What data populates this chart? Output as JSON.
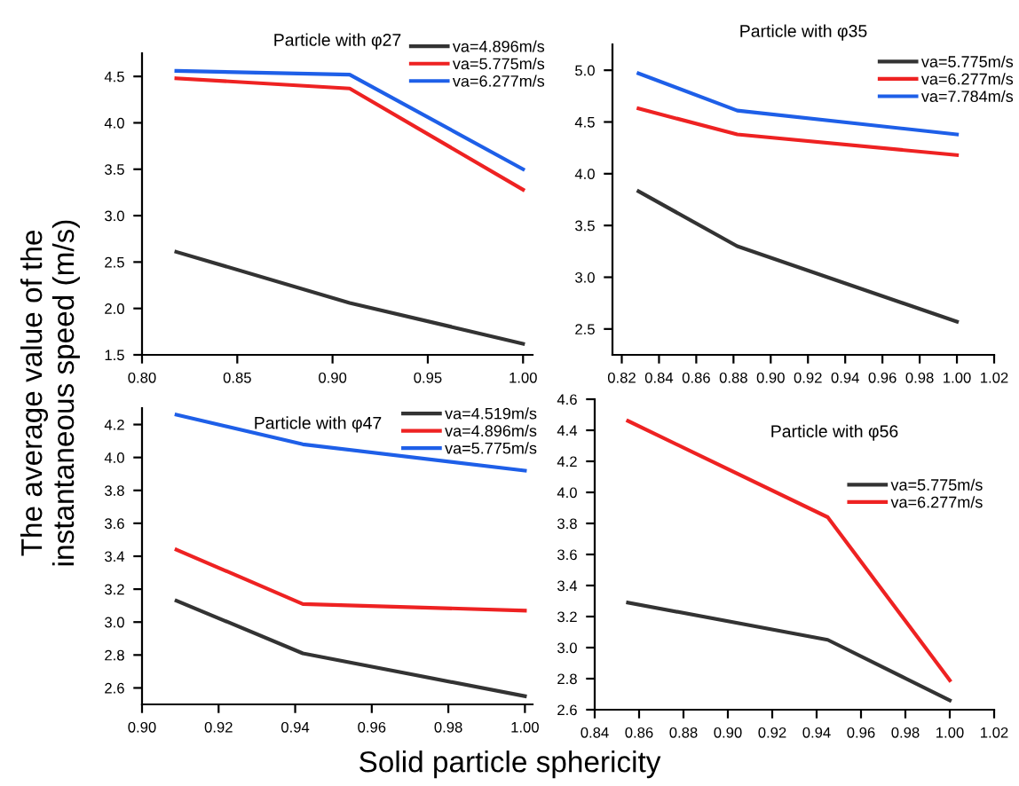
{
  "chart_data": [
    {
      "type": "line",
      "title": "Particle with φ27",
      "xlabel": "Solid particle sphericity",
      "ylabel": "The average value of the\ninstantaneous speed (m/s)",
      "x": [
        0.818,
        0.909,
        1.0
      ],
      "xlim": [
        0.8,
        1.005
      ],
      "xticks": [
        {
          "value": 0.8,
          "label": "0.80"
        },
        0.85,
        {
          "value": 0.9,
          "label": "0.90"
        },
        0.95,
        {
          "value": 1.0,
          "label": "1.00"
        }
      ],
      "ylim": [
        1.5,
        4.75
      ],
      "yticks": [
        1.5,
        {
          "value": 2.0,
          "label": "2.0"
        },
        2.5,
        {
          "value": 3.0,
          "label": "3.0"
        },
        3.5,
        {
          "value": 4.0,
          "label": "4.0"
        },
        4.5
      ],
      "legend": "top right",
      "grid": false,
      "series": [
        {
          "name": "va=4.896m/s",
          "color": "#333333",
          "values": [
            2.61,
            2.06,
            1.62
          ]
        },
        {
          "name": "va=5.775m/s",
          "color": "#ee2222",
          "values": [
            4.48,
            4.37,
            3.28
          ]
        },
        {
          "name": "va=6.277m/s",
          "color": "#1e5fe8",
          "values": [
            4.56,
            4.52,
            3.5
          ]
        }
      ]
    },
    {
      "type": "line",
      "title": "Particle with φ35",
      "x": [
        0.829,
        0.882,
        1.0
      ],
      "xlim": [
        0.815,
        1.02
      ],
      "xticks": [
        0.82,
        0.84,
        0.86,
        0.88,
        {
          "value": 0.9,
          "label": "0.90"
        },
        0.92,
        0.94,
        0.96,
        0.98,
        {
          "value": 1.0,
          "label": "1.00"
        },
        1.02
      ],
      "ylim": [
        2.25,
        5.25
      ],
      "yticks": [
        2.5,
        {
          "value": 3.0,
          "label": "3.0"
        },
        3.5,
        {
          "value": 4.0,
          "label": "4.0"
        },
        4.5,
        {
          "value": 5.0,
          "label": "5.0"
        }
      ],
      "legend": "top right",
      "grid": false,
      "series": [
        {
          "name": "va=5.775m/s",
          "color": "#333333",
          "values": [
            3.83,
            3.3,
            2.57
          ]
        },
        {
          "name": "va=6.277m/s",
          "color": "#ee2222",
          "values": [
            4.63,
            4.38,
            4.18
          ]
        },
        {
          "name": "va=7.784m/s",
          "color": "#1e5fe8",
          "values": [
            4.97,
            4.61,
            4.38
          ]
        }
      ]
    },
    {
      "type": "line",
      "title": "Particle with φ47",
      "x": [
        0.909,
        0.942,
        1.0
      ],
      "xlim": [
        0.9,
        1.002
      ],
      "xticks": [
        {
          "value": 0.9,
          "label": "0.90"
        },
        0.92,
        0.94,
        0.96,
        0.98,
        {
          "value": 1.0,
          "label": "1.00"
        }
      ],
      "ylim": [
        2.5,
        4.3
      ],
      "yticks": [
        2.6,
        2.8,
        {
          "value": 3.0,
          "label": "3.0"
        },
        3.2,
        3.4,
        3.6,
        3.8,
        {
          "value": 4.0,
          "label": "4.0"
        },
        4.2
      ],
      "legend": "top right",
      "grid": false,
      "series": [
        {
          "name": "va=4.519m/s",
          "color": "#333333",
          "values": [
            3.13,
            2.81,
            2.55
          ]
        },
        {
          "name": "va=4.896m/s",
          "color": "#ee2222",
          "values": [
            3.44,
            3.11,
            3.07
          ]
        },
        {
          "name": "va=5.775m/s",
          "color": "#1e5fe8",
          "values": [
            4.26,
            4.08,
            3.92
          ]
        }
      ]
    },
    {
      "type": "line",
      "title": "Particle with φ56",
      "x": [
        0.855,
        0.945,
        1.0
      ],
      "xlim": [
        0.84,
        1.02
      ],
      "xticks": [
        0.84,
        0.86,
        0.88,
        {
          "value": 0.9,
          "label": "0.90"
        },
        0.92,
        0.94,
        0.96,
        0.98,
        {
          "value": 1.0,
          "label": "1.00"
        },
        1.02
      ],
      "ylim": [
        2.6,
        4.6
      ],
      "yticks": [
        2.6,
        2.8,
        {
          "value": 3.0,
          "label": "3.0"
        },
        3.2,
        3.4,
        3.6,
        3.8,
        {
          "value": 4.0,
          "label": "4.0"
        },
        4.2,
        4.4,
        4.6
      ],
      "legend": "right",
      "grid": false,
      "series": [
        {
          "name": "va=5.775m/s",
          "color": "#333333",
          "values": [
            3.29,
            3.05,
            2.66
          ]
        },
        {
          "name": "va=6.277m/s",
          "color": "#ee2222",
          "values": [
            4.46,
            3.84,
            2.79
          ]
        }
      ]
    }
  ]
}
